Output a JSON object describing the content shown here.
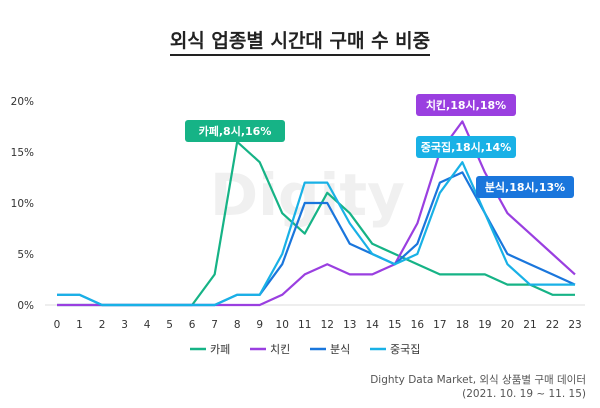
{
  "chart_data": {
    "type": "line",
    "title": "외식 업종별 시간대 구매 수 비중",
    "x": [
      0,
      1,
      2,
      3,
      4,
      5,
      6,
      7,
      8,
      9,
      10,
      11,
      12,
      13,
      14,
      15,
      16,
      17,
      18,
      19,
      20,
      21,
      22,
      23
    ],
    "ylim": [
      0,
      20
    ],
    "yticks": [
      "0%",
      "5%",
      "10%",
      "15%",
      "20%"
    ],
    "ytick_values": [
      0,
      5,
      10,
      15,
      20
    ],
    "grid": false,
    "legend": "bottom",
    "watermark": "Digity",
    "series": [
      {
        "name": "카페",
        "color": "#16b386",
        "values": [
          0,
          0,
          0,
          0,
          0,
          0,
          0,
          3,
          16,
          14,
          9,
          7,
          11,
          9,
          6,
          5,
          4,
          3,
          3,
          3,
          2,
          2,
          1,
          1
        ]
      },
      {
        "name": "치킨",
        "color": "#9a3fe0",
        "values": [
          0,
          0,
          0,
          0,
          0,
          0,
          0,
          0,
          0,
          0,
          1,
          3,
          4,
          3,
          3,
          4,
          8,
          15,
          18,
          13,
          9,
          7,
          5,
          3
        ]
      },
      {
        "name": "분식",
        "color": "#1a76dc",
        "values": [
          1,
          1,
          0,
          0,
          0,
          0,
          0,
          0,
          1,
          1,
          4,
          10,
          10,
          6,
          5,
          4,
          6,
          12,
          13,
          9,
          5,
          4,
          3,
          2
        ]
      },
      {
        "name": "중국집",
        "color": "#19b1e6",
        "values": [
          1,
          1,
          0,
          0,
          0,
          0,
          0,
          0,
          1,
          1,
          5,
          12,
          12,
          8,
          5,
          4,
          5,
          11,
          14,
          9,
          4,
          2,
          2,
          2
        ]
      }
    ],
    "annotations": [
      {
        "series": "카페",
        "x": 8,
        "text": "카페,8시,16%"
      },
      {
        "series": "치킨",
        "x": 18,
        "text": "치킨,18시,18%"
      },
      {
        "series": "중국집",
        "x": 18,
        "text": "중국집,18시,14%"
      },
      {
        "series": "분식",
        "x": 18,
        "text": "분식,18시,13%"
      }
    ]
  },
  "source": {
    "line1": "Dighty Data Market, 외식 상품별 구매 데이터",
    "line2": "(2021. 10. 19 ~ 11. 15)"
  }
}
